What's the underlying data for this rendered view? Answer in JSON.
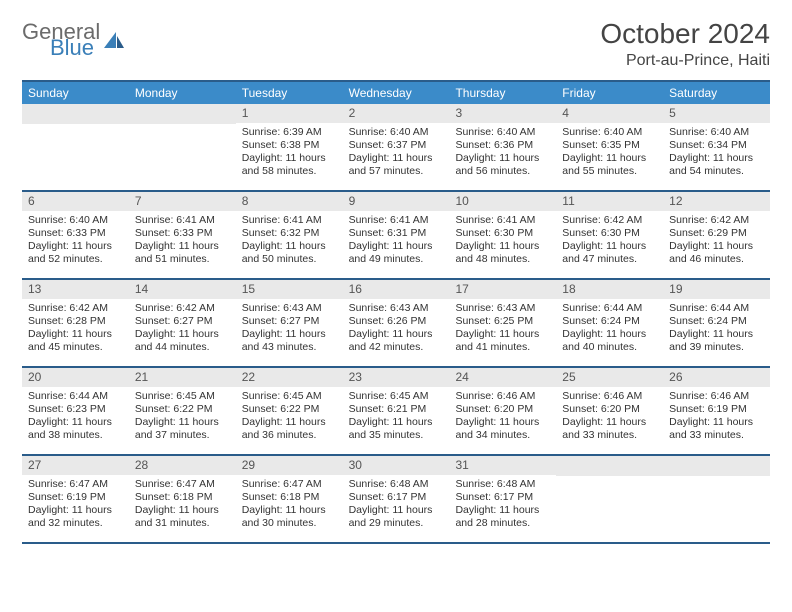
{
  "colors": {
    "header_bar": "#3b8bc9",
    "rule": "#2a5c8a",
    "daynum_bg": "#e9e9e9",
    "text": "#333333",
    "logo_gray": "#6b6b6b",
    "logo_blue": "#3a7fb8",
    "background": "#ffffff"
  },
  "logo": {
    "word1": "General",
    "word2": "Blue"
  },
  "title": "October 2024",
  "location": "Port-au-Prince, Haiti",
  "days_of_week": [
    "Sunday",
    "Monday",
    "Tuesday",
    "Wednesday",
    "Thursday",
    "Friday",
    "Saturday"
  ],
  "weeks": [
    [
      null,
      null,
      {
        "n": "1",
        "sunrise": "Sunrise: 6:39 AM",
        "sunset": "Sunset: 6:38 PM",
        "daylight": "Daylight: 11 hours and 58 minutes."
      },
      {
        "n": "2",
        "sunrise": "Sunrise: 6:40 AM",
        "sunset": "Sunset: 6:37 PM",
        "daylight": "Daylight: 11 hours and 57 minutes."
      },
      {
        "n": "3",
        "sunrise": "Sunrise: 6:40 AM",
        "sunset": "Sunset: 6:36 PM",
        "daylight": "Daylight: 11 hours and 56 minutes."
      },
      {
        "n": "4",
        "sunrise": "Sunrise: 6:40 AM",
        "sunset": "Sunset: 6:35 PM",
        "daylight": "Daylight: 11 hours and 55 minutes."
      },
      {
        "n": "5",
        "sunrise": "Sunrise: 6:40 AM",
        "sunset": "Sunset: 6:34 PM",
        "daylight": "Daylight: 11 hours and 54 minutes."
      }
    ],
    [
      {
        "n": "6",
        "sunrise": "Sunrise: 6:40 AM",
        "sunset": "Sunset: 6:33 PM",
        "daylight": "Daylight: 11 hours and 52 minutes."
      },
      {
        "n": "7",
        "sunrise": "Sunrise: 6:41 AM",
        "sunset": "Sunset: 6:33 PM",
        "daylight": "Daylight: 11 hours and 51 minutes."
      },
      {
        "n": "8",
        "sunrise": "Sunrise: 6:41 AM",
        "sunset": "Sunset: 6:32 PM",
        "daylight": "Daylight: 11 hours and 50 minutes."
      },
      {
        "n": "9",
        "sunrise": "Sunrise: 6:41 AM",
        "sunset": "Sunset: 6:31 PM",
        "daylight": "Daylight: 11 hours and 49 minutes."
      },
      {
        "n": "10",
        "sunrise": "Sunrise: 6:41 AM",
        "sunset": "Sunset: 6:30 PM",
        "daylight": "Daylight: 11 hours and 48 minutes."
      },
      {
        "n": "11",
        "sunrise": "Sunrise: 6:42 AM",
        "sunset": "Sunset: 6:30 PM",
        "daylight": "Daylight: 11 hours and 47 minutes."
      },
      {
        "n": "12",
        "sunrise": "Sunrise: 6:42 AM",
        "sunset": "Sunset: 6:29 PM",
        "daylight": "Daylight: 11 hours and 46 minutes."
      }
    ],
    [
      {
        "n": "13",
        "sunrise": "Sunrise: 6:42 AM",
        "sunset": "Sunset: 6:28 PM",
        "daylight": "Daylight: 11 hours and 45 minutes."
      },
      {
        "n": "14",
        "sunrise": "Sunrise: 6:42 AM",
        "sunset": "Sunset: 6:27 PM",
        "daylight": "Daylight: 11 hours and 44 minutes."
      },
      {
        "n": "15",
        "sunrise": "Sunrise: 6:43 AM",
        "sunset": "Sunset: 6:27 PM",
        "daylight": "Daylight: 11 hours and 43 minutes."
      },
      {
        "n": "16",
        "sunrise": "Sunrise: 6:43 AM",
        "sunset": "Sunset: 6:26 PM",
        "daylight": "Daylight: 11 hours and 42 minutes."
      },
      {
        "n": "17",
        "sunrise": "Sunrise: 6:43 AM",
        "sunset": "Sunset: 6:25 PM",
        "daylight": "Daylight: 11 hours and 41 minutes."
      },
      {
        "n": "18",
        "sunrise": "Sunrise: 6:44 AM",
        "sunset": "Sunset: 6:24 PM",
        "daylight": "Daylight: 11 hours and 40 minutes."
      },
      {
        "n": "19",
        "sunrise": "Sunrise: 6:44 AM",
        "sunset": "Sunset: 6:24 PM",
        "daylight": "Daylight: 11 hours and 39 minutes."
      }
    ],
    [
      {
        "n": "20",
        "sunrise": "Sunrise: 6:44 AM",
        "sunset": "Sunset: 6:23 PM",
        "daylight": "Daylight: 11 hours and 38 minutes."
      },
      {
        "n": "21",
        "sunrise": "Sunrise: 6:45 AM",
        "sunset": "Sunset: 6:22 PM",
        "daylight": "Daylight: 11 hours and 37 minutes."
      },
      {
        "n": "22",
        "sunrise": "Sunrise: 6:45 AM",
        "sunset": "Sunset: 6:22 PM",
        "daylight": "Daylight: 11 hours and 36 minutes."
      },
      {
        "n": "23",
        "sunrise": "Sunrise: 6:45 AM",
        "sunset": "Sunset: 6:21 PM",
        "daylight": "Daylight: 11 hours and 35 minutes."
      },
      {
        "n": "24",
        "sunrise": "Sunrise: 6:46 AM",
        "sunset": "Sunset: 6:20 PM",
        "daylight": "Daylight: 11 hours and 34 minutes."
      },
      {
        "n": "25",
        "sunrise": "Sunrise: 6:46 AM",
        "sunset": "Sunset: 6:20 PM",
        "daylight": "Daylight: 11 hours and 33 minutes."
      },
      {
        "n": "26",
        "sunrise": "Sunrise: 6:46 AM",
        "sunset": "Sunset: 6:19 PM",
        "daylight": "Daylight: 11 hours and 33 minutes."
      }
    ],
    [
      {
        "n": "27",
        "sunrise": "Sunrise: 6:47 AM",
        "sunset": "Sunset: 6:19 PM",
        "daylight": "Daylight: 11 hours and 32 minutes."
      },
      {
        "n": "28",
        "sunrise": "Sunrise: 6:47 AM",
        "sunset": "Sunset: 6:18 PM",
        "daylight": "Daylight: 11 hours and 31 minutes."
      },
      {
        "n": "29",
        "sunrise": "Sunrise: 6:47 AM",
        "sunset": "Sunset: 6:18 PM",
        "daylight": "Daylight: 11 hours and 30 minutes."
      },
      {
        "n": "30",
        "sunrise": "Sunrise: 6:48 AM",
        "sunset": "Sunset: 6:17 PM",
        "daylight": "Daylight: 11 hours and 29 minutes."
      },
      {
        "n": "31",
        "sunrise": "Sunrise: 6:48 AM",
        "sunset": "Sunset: 6:17 PM",
        "daylight": "Daylight: 11 hours and 28 minutes."
      },
      null,
      null
    ]
  ]
}
